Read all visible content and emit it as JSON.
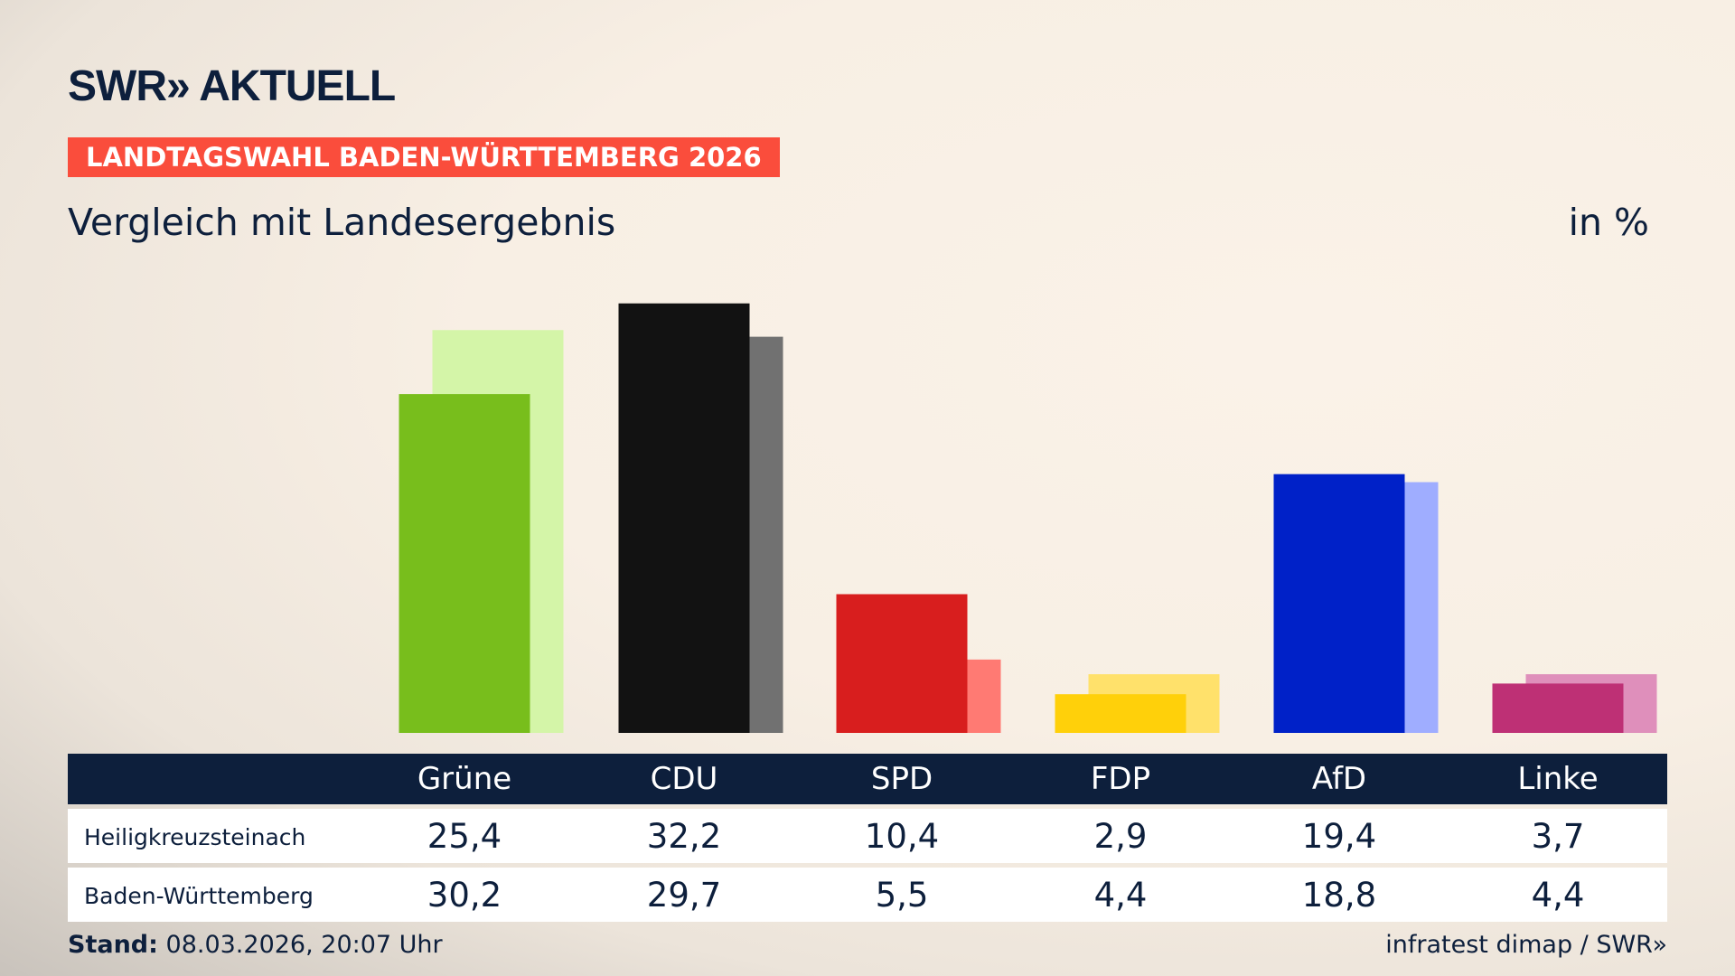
{
  "header": {
    "logo": "SWR» AKTUELL",
    "banner": "LANDTAGSWAHL BADEN-WÜRTTEMBERG 2026",
    "subtitle": "Vergleich mit Landesergebnis",
    "unit": "in %"
  },
  "chart_data": {
    "type": "bar",
    "categories": [
      "Grüne",
      "CDU",
      "SPD",
      "FDP",
      "AfD",
      "Linke"
    ],
    "series": [
      {
        "name": "Heiligkreuzsteinach",
        "values": [
          25.4,
          32.2,
          10.4,
          2.9,
          19.4,
          3.7
        ],
        "labels": [
          "25,4",
          "32,2",
          "10,4",
          "2,9",
          "19,4",
          "3,7"
        ]
      },
      {
        "name": "Baden-Württemberg",
        "values": [
          30.2,
          29.7,
          5.5,
          4.4,
          18.8,
          4.4
        ],
        "labels": [
          "30,2",
          "29,7",
          "5,5",
          "4,4",
          "18,8",
          "4,4"
        ]
      }
    ],
    "colors": [
      [
        "#78be1c",
        "#d4f5a8"
      ],
      [
        "#121212",
        "#717171"
      ],
      [
        "#d81e1e",
        "#ff7a73"
      ],
      [
        "#ffd00a",
        "#ffe16b"
      ],
      [
        "#0021c8",
        "#9fadff"
      ],
      [
        "#be3075",
        "#df8fbb"
      ]
    ],
    "ylim": [
      0,
      35
    ]
  },
  "footer": {
    "stand_label": "Stand:",
    "stand_value": "08.03.2026, 20:07 Uhr",
    "source": "infratest dimap / SWR»"
  }
}
